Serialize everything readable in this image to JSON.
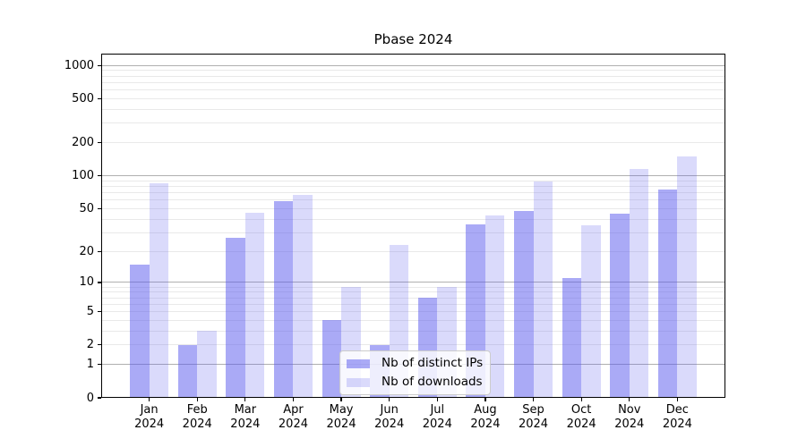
{
  "title": "Pbase 2024",
  "colors": {
    "bar_base": "#5555ee",
    "ips_bar": "rgba(85,85,238,0.5)",
    "downloads_bar": "rgba(85,85,238,0.22)",
    "grid_major": "#b0b0b0",
    "grid_minor": "#e9e9e9",
    "spine": "#000000",
    "text": "#000000",
    "legend_border": "#cccccc"
  },
  "chart_data": {
    "type": "bar",
    "title": "Pbase 2024",
    "year": "2024",
    "categories": [
      "Jan",
      "Feb",
      "Mar",
      "Apr",
      "May",
      "Jun",
      "Jul",
      "Aug",
      "Sep",
      "Oct",
      "Nov",
      "Dec"
    ],
    "series": [
      {
        "name": "Nb of distinct IPs",
        "values": [
          15,
          2,
          27,
          59,
          4,
          2,
          7,
          36,
          48,
          11,
          45,
          75
        ]
      },
      {
        "name": "Nb of downloads",
        "values": [
          85,
          3,
          46,
          67,
          9,
          23,
          9,
          43,
          88,
          35,
          115,
          150
        ]
      }
    ],
    "y_axis": {
      "scale": "log1p",
      "range": [
        0,
        1000
      ],
      "ticks": [
        0,
        1,
        2,
        5,
        10,
        20,
        50,
        100,
        200,
        500,
        1000
      ],
      "major_gridlines": [
        1,
        10,
        100,
        1000
      ],
      "minor_gridlines": [
        2,
        3,
        4,
        5,
        6,
        7,
        8,
        9,
        20,
        30,
        40,
        50,
        60,
        70,
        80,
        90,
        200,
        300,
        400,
        500,
        600,
        700,
        800,
        900
      ]
    },
    "x_axis": {
      "tick_label_lines": 2
    },
    "legend": {
      "position": "lower center",
      "items": [
        "Nb of distinct IPs",
        "Nb of downloads"
      ]
    },
    "grid": true
  }
}
